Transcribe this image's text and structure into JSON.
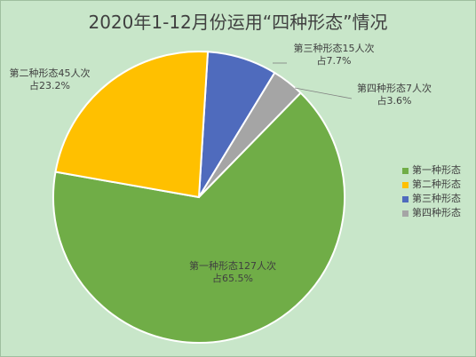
{
  "chart_data": {
    "type": "pie",
    "title": "2020年1-12月份运用“四种形态”情况",
    "series": [
      {
        "name": "第一种形态",
        "value": 127,
        "label_count": "第一种形态127人次",
        "label_pct": "占65.5%",
        "color": "#70ad47"
      },
      {
        "name": "第二种形态",
        "value": 45,
        "label_count": "第二种形态45人次",
        "label_pct": "占23.2%",
        "color": "#ffc000"
      },
      {
        "name": "第三种形态",
        "value": 15,
        "label_count": "第三种形态15人次",
        "label_pct": "占7.7%",
        "color": "#4f6bbd"
      },
      {
        "name": "第四种形态",
        "value": 7,
        "label_count": "第四种形态7人次",
        "label_pct": "占3.6%",
        "color": "#a5a5a5"
      }
    ],
    "legend": {
      "position": "right",
      "items": [
        "第一种形态",
        "第二种形态",
        "第三种形态",
        "第四种形态"
      ]
    }
  },
  "colors": {
    "background": "#c8e6c9",
    "slice_border": "#ffffff",
    "text": "#404040"
  }
}
